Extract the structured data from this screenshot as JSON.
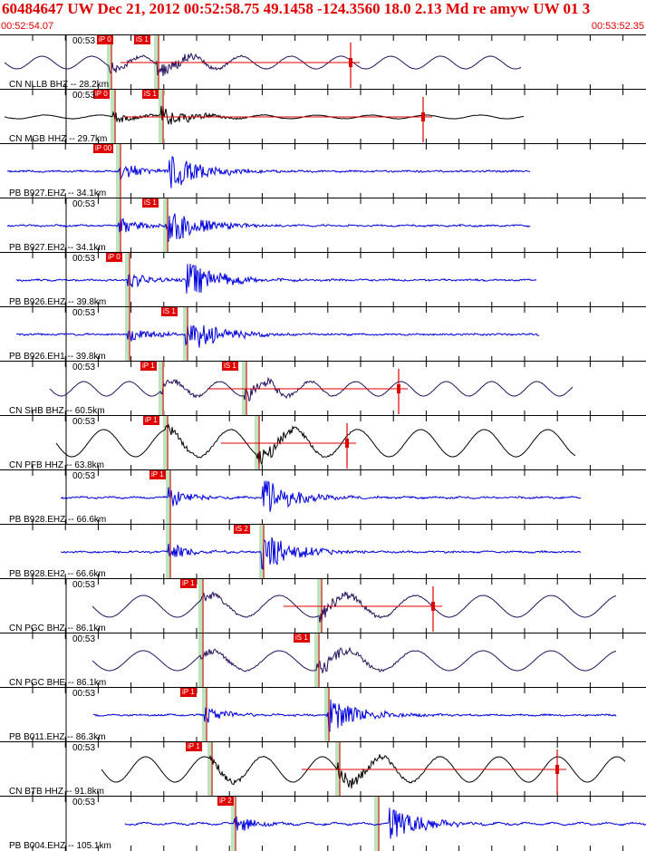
{
  "header": {
    "title": "60484647 UW Dec 21, 2012 00:52:58.75    49.1458 -124.3560 18.0 2.13 Md re amyw UW 01   3",
    "time_start": "00:52:54.07",
    "time_end": "00:53:52.35"
  },
  "colors": {
    "header_text": "#e00000",
    "pick_box": "#e00000",
    "pick_window": "#bfe3bf",
    "trace_blue": "#0000dd",
    "trace_purple": "#2a1060",
    "trace_black": "#000000"
  },
  "panels": [
    {
      "time": "00:53",
      "station": "CN NLLB BHZ -- 28.2km",
      "picks": [
        {
          "label": "iP 0",
          "x": 107,
          "color": "black"
        },
        {
          "label": "iS 1",
          "x": 148,
          "color": "black"
        }
      ],
      "green": [
        121,
        173
      ],
      "trace": {
        "color": "purple",
        "x0": 5,
        "x1": 575,
        "p": 121,
        "s": 173,
        "amp": 0.35,
        "period": 55,
        "noise": 0.15
      },
      "coda": 387
    },
    {
      "time": "00:53",
      "station": "CN MGB HHZ -- 29.7km",
      "picks": [
        {
          "label": "iP 0",
          "x": 103,
          "color": "black"
        },
        {
          "label": "iS 1",
          "x": 157,
          "color": "black"
        }
      ],
      "green": [
        125,
        178
      ],
      "trace": {
        "color": "black",
        "x0": 5,
        "x1": 578,
        "p": 125,
        "s": 178,
        "amp": 0.1,
        "period": 60,
        "noise": 0.25
      },
      "coda": 467
    },
    {
      "time": "",
      "station": "PB B927.EHZ -- 34.1km",
      "picks": [
        {
          "label": "iP 00",
          "x": 103,
          "color": "black"
        }
      ],
      "green": [
        131
      ],
      "trace": {
        "color": "blue",
        "x0": 8,
        "x1": 585,
        "p": 131,
        "s": 187,
        "amp": 0.02,
        "period": 30,
        "noise": 0.9
      },
      "coda": null
    },
    {
      "time": "00:53",
      "station": "PB B927.EH2 -- 34.1km",
      "picks": [
        {
          "label": "iS 1",
          "x": 157,
          "color": "black"
        }
      ],
      "green": [
        131,
        183
      ],
      "trace": {
        "color": "blue",
        "x0": 8,
        "x1": 585,
        "p": 131,
        "s": 184,
        "amp": 0.02,
        "period": 30,
        "noise": 0.9
      },
      "coda": null
    },
    {
      "time": "00:53",
      "station": "PB B926.EHZ -- 39.8km",
      "picks": [
        {
          "label": "iP 0",
          "x": 117,
          "color": "black"
        }
      ],
      "green": [
        141
      ],
      "trace": {
        "color": "blue",
        "x0": 18,
        "x1": 592,
        "p": 141,
        "s": 206,
        "amp": 0.02,
        "period": 30,
        "noise": 0.9
      },
      "coda": null
    },
    {
      "time": "00:53",
      "station": "PB B926.EH1 -- 39.8km",
      "picks": [
        {
          "label": "iS 1",
          "x": 178,
          "color": "black"
        }
      ],
      "green": [
        141,
        205
      ],
      "trace": {
        "color": "blue",
        "x0": 18,
        "x1": 595,
        "p": 141,
        "s": 205,
        "amp": 0.02,
        "period": 30,
        "noise": 0.9
      },
      "coda": null
    },
    {
      "time": "00:53",
      "station": "CN SHB BHZ -- 60.5km",
      "picks": [
        {
          "label": "iP 1",
          "x": 155,
          "color": "black"
        },
        {
          "label": "iS 1",
          "x": 245,
          "color": "black"
        }
      ],
      "green": [
        178,
        270
      ],
      "trace": {
        "color": "purple",
        "x0": 55,
        "x1": 632,
        "p": 178,
        "s": 270,
        "amp": 0.4,
        "period": 50,
        "noise": 0.15
      },
      "coda": 440
    },
    {
      "time": "00:53",
      "station": "CN PFB HHZ -- 63.8km",
      "picks": [
        {
          "label": "iP 1",
          "x": 158,
          "color": "black"
        }
      ],
      "green": [
        183,
        284
      ],
      "trace": {
        "color": "black",
        "x0": 62,
        "x1": 635,
        "p": 183,
        "s": 284,
        "amp": 0.75,
        "period": 70,
        "noise": 0.12
      },
      "coda": 383
    },
    {
      "time": "00:53",
      "station": "PB B928.EHZ -- 66.6km",
      "picks": [
        {
          "label": "iP 1",
          "x": 165,
          "color": "black"
        }
      ],
      "green": [
        186
      ],
      "trace": {
        "color": "blue",
        "x0": 67,
        "x1": 641,
        "p": 186,
        "s": 290,
        "amp": 0.03,
        "period": 30,
        "noise": 0.9
      },
      "coda": null
    },
    {
      "time": "",
      "station": "PB B928.EH2 -- 66.6km",
      "picks": [
        {
          "label": "iS 2",
          "x": 258,
          "color": "black"
        }
      ],
      "green": [
        186,
        289
      ],
      "trace": {
        "color": "blue",
        "x0": 67,
        "x1": 641,
        "p": 186,
        "s": 289,
        "amp": 0.02,
        "period": 30,
        "noise": 0.9
      },
      "coda": null
    },
    {
      "time": "00:53",
      "station": "CN PGC BHZ -- 86.1km",
      "picks": [
        {
          "label": "iP 1",
          "x": 199,
          "color": "black"
        }
      ],
      "green": [
        222,
        353
      ],
      "trace": {
        "color": "purple",
        "x0": 102,
        "x1": 680,
        "p": 222,
        "s": 353,
        "amp": 0.6,
        "period": 75,
        "noise": 0.1
      },
      "coda": 478
    },
    {
      "time": "00:53",
      "station": "CN PGC BHE -- 86.1km",
      "picks": [
        {
          "label": "iS 1",
          "x": 324,
          "color": "black"
        }
      ],
      "green": [
        222,
        350
      ],
      "trace": {
        "color": "purple",
        "x0": 102,
        "x1": 680,
        "p": 222,
        "s": 350,
        "amp": 0.55,
        "period": 75,
        "noise": 0.1
      },
      "coda": null
    },
    {
      "time": "00:53",
      "station": "PB B011.EHZ -- 86.3km",
      "picks": [
        {
          "label": "iP 1",
          "x": 199,
          "color": "black"
        }
      ],
      "green": [
        226,
        361
      ],
      "trace": {
        "color": "blue",
        "x0": 103,
        "x1": 680,
        "p": 226,
        "s": 361,
        "amp": 0.02,
        "period": 30,
        "noise": 0.9
      },
      "coda": null
    },
    {
      "time": "00:53",
      "station": "CN BTB HHZ -- 91.8km",
      "picks": [
        {
          "label": "iP 1",
          "x": 205,
          "color": "black"
        }
      ],
      "green": [
        232,
        373
      ],
      "trace": {
        "color": "black",
        "x0": 112,
        "x1": 690,
        "p": 232,
        "s": 373,
        "amp": 0.7,
        "period": 65,
        "noise": 0.1
      },
      "coda": 615
    },
    {
      "time": "00:53",
      "station": "PB B004.EHZ -- 105.1km",
      "picks": [
        {
          "label": "iP 2",
          "x": 240,
          "color": "black"
        }
      ],
      "green": [
        258,
        416
      ],
      "trace": {
        "color": "blue",
        "x0": 138,
        "x1": 713,
        "p": 258,
        "s": 430,
        "amp": 0.05,
        "period": 30,
        "noise": 0.8
      },
      "coda": null
    }
  ]
}
